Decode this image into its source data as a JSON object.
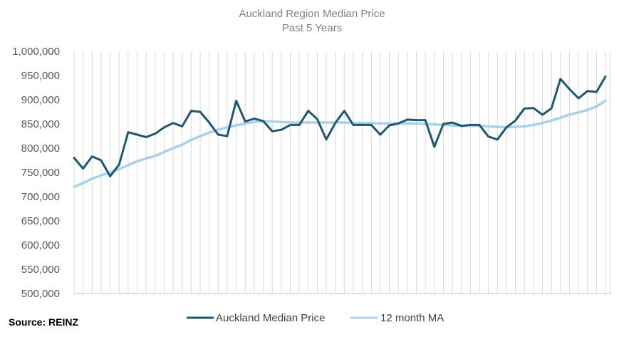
{
  "chart_data": {
    "type": "line",
    "title": "Auckland Region Median Price",
    "subtitle": "Past 5 Years",
    "source": "Source: REINZ",
    "ylim": [
      500000,
      1000000
    ],
    "yticks": [
      500000,
      550000,
      600000,
      650000,
      700000,
      750000,
      800000,
      850000,
      900000,
      950000,
      1000000
    ],
    "ytick_labels": [
      "500,000",
      "550,000",
      "600,000",
      "650,000",
      "700,000",
      "750,000",
      "800,000",
      "850,000",
      "900,000",
      "950,000",
      "1,000,000"
    ],
    "x": [
      1,
      2,
      3,
      4,
      5,
      6,
      7,
      8,
      9,
      10,
      11,
      12,
      13,
      14,
      15,
      16,
      17,
      18,
      19,
      20,
      21,
      22,
      23,
      24,
      25,
      26,
      27,
      28,
      29,
      30,
      31,
      32,
      33,
      34,
      35,
      36,
      37,
      38,
      39,
      40,
      41,
      42,
      43,
      44,
      45,
      46,
      47,
      48,
      49,
      50,
      51,
      52,
      53,
      54,
      55,
      56,
      57,
      58,
      59,
      60
    ],
    "series": [
      {
        "name": "Auckland Median Price",
        "color": "#1f5773",
        "values": [
          780000,
          758000,
          783000,
          775000,
          742000,
          766000,
          833000,
          828000,
          823000,
          830000,
          843000,
          852000,
          845000,
          877000,
          875000,
          853000,
          828000,
          825000,
          898000,
          855000,
          861000,
          856000,
          835000,
          838000,
          848000,
          848000,
          877000,
          860000,
          818000,
          852000,
          877000,
          848000,
          848000,
          848000,
          828000,
          847000,
          851000,
          859000,
          858000,
          858000,
          803000,
          850000,
          853000,
          846000,
          848000,
          848000,
          824000,
          818000,
          843000,
          857000,
          882000,
          883000,
          869000,
          882000,
          943000,
          922000,
          903000,
          918000,
          916000,
          948000
        ]
      },
      {
        "name": "12 month MA",
        "color": "#a9d2ea",
        "values": [
          720000,
          728000,
          737000,
          744000,
          750000,
          757000,
          765000,
          773000,
          779000,
          784000,
          792000,
          800000,
          807000,
          817000,
          825000,
          832000,
          838000,
          843000,
          847000,
          851000,
          854000,
          856000,
          855000,
          854000,
          853000,
          853000,
          853000,
          853000,
          853000,
          853000,
          853000,
          852000,
          852000,
          852000,
          851000,
          851000,
          851000,
          851000,
          851000,
          850000,
          849000,
          848000,
          847000,
          846000,
          846000,
          846000,
          845000,
          844000,
          843000,
          844000,
          845000,
          848000,
          852000,
          857000,
          863000,
          869000,
          874000,
          879000,
          886000,
          898000
        ]
      }
    ],
    "legend": "bottom-center",
    "grid": "vertical lines per point"
  }
}
